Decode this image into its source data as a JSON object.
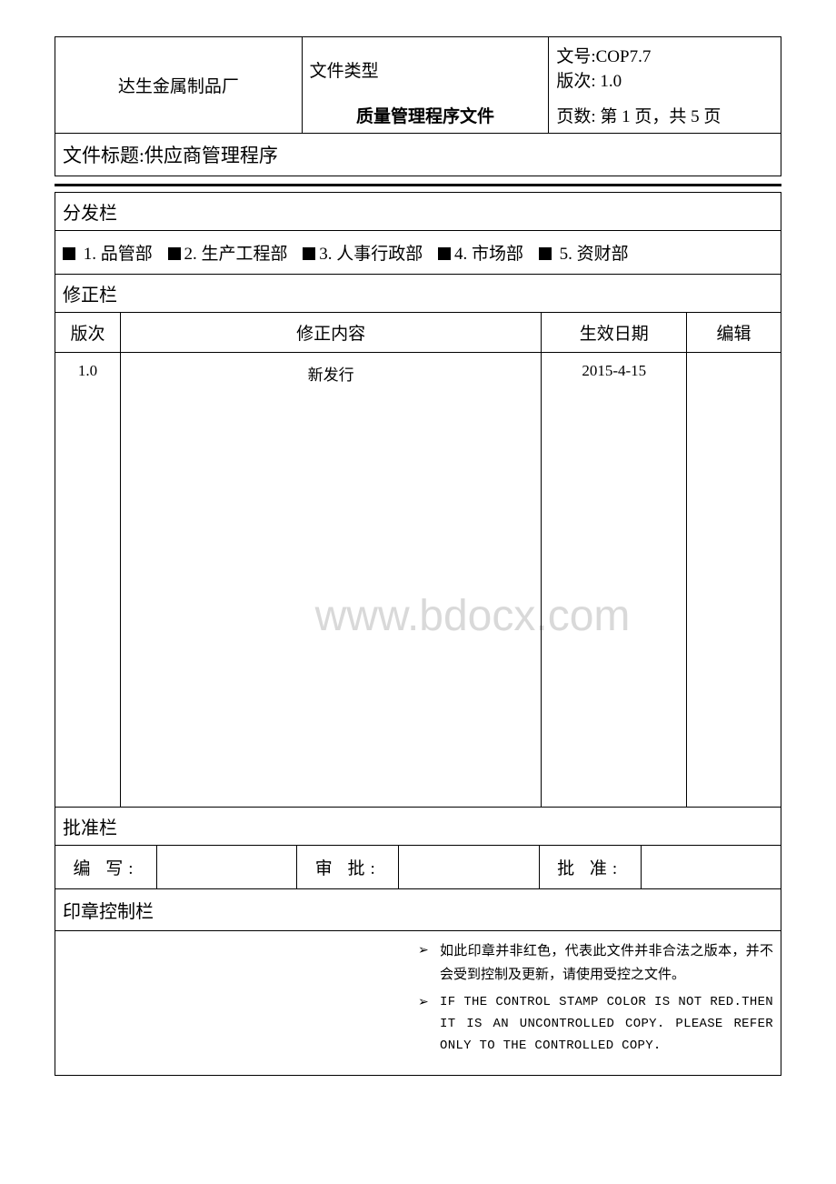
{
  "header": {
    "company": "达生金属制品厂",
    "doc_type_label": "文件类型",
    "doc_type_value": "质量管理程序文件",
    "doc_no_label": "文号:",
    "doc_no": "COP7.7",
    "version_label": "版次:",
    "version": "1.0",
    "page_label": "页数:",
    "page_info": "第 1 页，共 5 页",
    "title_label": "文件标题:",
    "title": "供应商管理程序"
  },
  "distribution": {
    "label": "分发栏",
    "items": [
      "1. 品管部",
      "2. 生产工程部",
      "3. 人事行政部",
      "4. 市场部",
      "5. 资财部"
    ]
  },
  "revision": {
    "label": "修正栏",
    "columns": [
      "版次",
      "修正内容",
      "生效日期",
      "编辑"
    ],
    "rows": [
      {
        "version": "1.0",
        "content": "新发行",
        "date": "2015-4-15",
        "editor": ""
      }
    ]
  },
  "approval": {
    "label": "批准栏",
    "write_label": "编 写:",
    "write_value": "",
    "review_label": "审 批:",
    "review_value": "",
    "approve_label": "批 准:",
    "approve_value": ""
  },
  "stamp": {
    "label": "印章控制栏",
    "note_cn": "如此印章并非红色，代表此文件并非合法之版本，并不会受到控制及更新，请使用受控之文件。",
    "note_en": "IF THE CONTROL STAMP COLOR IS NOT RED.THEN IT IS AN UNCONTROLLED COPY. PLEASE REFER ONLY TO THE CONTROLLED  COPY."
  },
  "watermark": "www.bdocx.com",
  "colors": {
    "border": "#000000",
    "background": "#ffffff",
    "text": "#000000",
    "watermark": "#d9d9d9",
    "checkbox_fill": "#000000"
  }
}
